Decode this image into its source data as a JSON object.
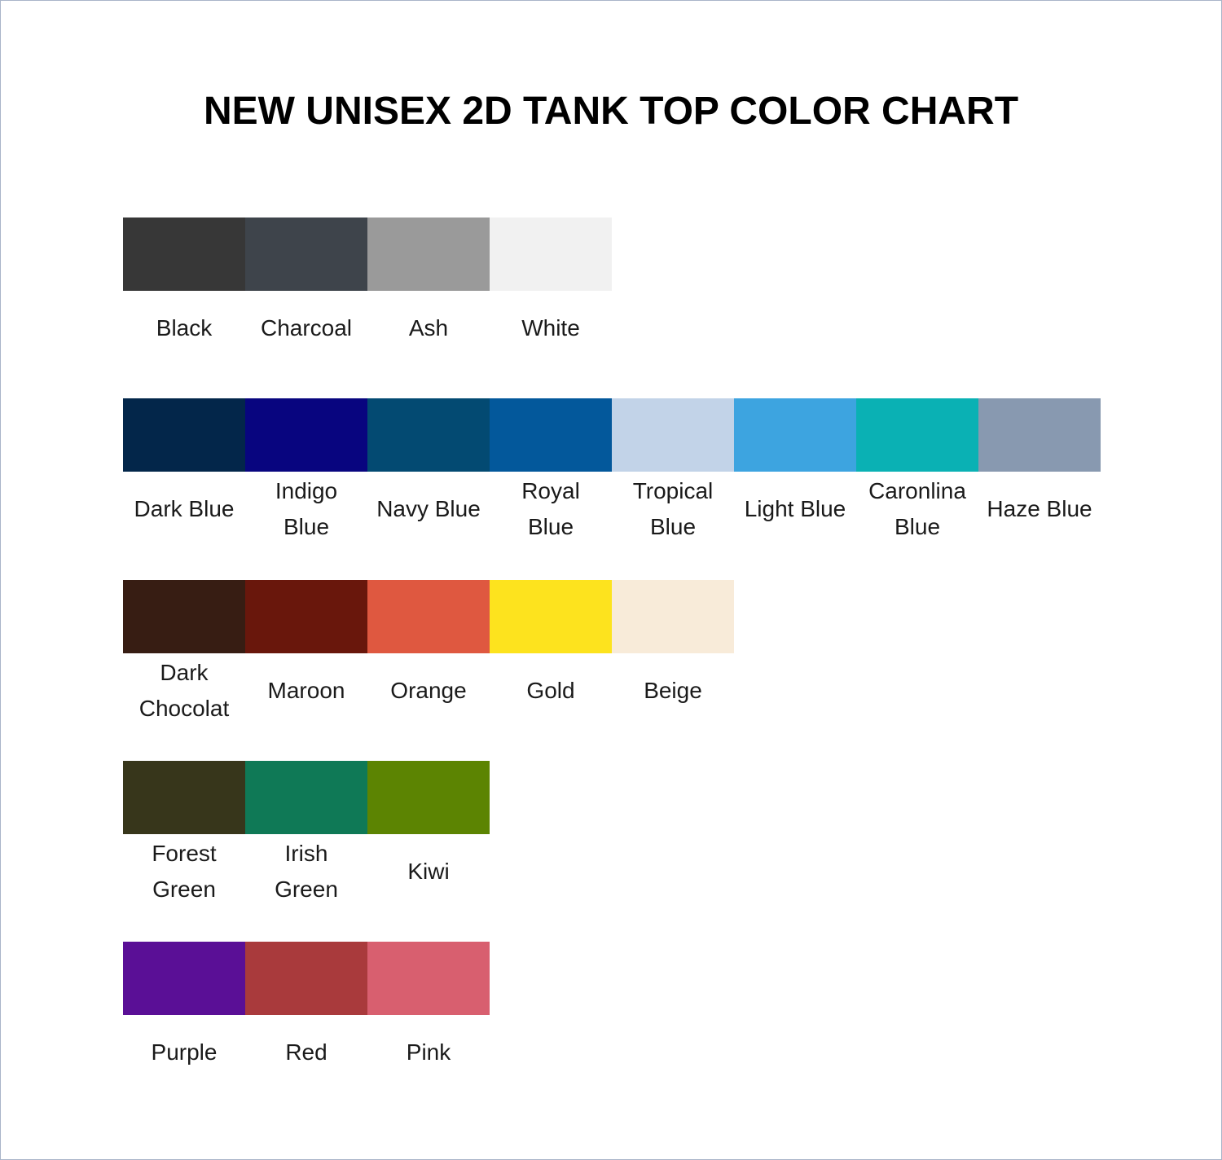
{
  "title": "NEW UNISEX 2D TANK TOP COLOR CHART",
  "rows": [
    [
      {
        "name": "Black",
        "color": "#373737"
      },
      {
        "name": "Charcoal",
        "color": "#3e444b"
      },
      {
        "name": "Ash",
        "color": "#9a9a9a"
      },
      {
        "name": "White",
        "color": "#f1f1f1"
      }
    ],
    [
      {
        "name": "Dark Blue",
        "color": "#03264a"
      },
      {
        "name": "Indigo\nBlue",
        "color": "#08057f"
      },
      {
        "name": "Navy Blue",
        "color": "#034a72"
      },
      {
        "name": "Royal\nBlue",
        "color": "#03589b"
      },
      {
        "name": "Tropical\nBlue",
        "color": "#c2d3e8"
      },
      {
        "name": "Light Blue",
        "color": "#3da4e0"
      },
      {
        "name": "Caronlina\nBlue",
        "color": "#0ab1b4"
      },
      {
        "name": "Haze Blue",
        "color": "#8899b0"
      }
    ],
    [
      {
        "name": "Dark\nChocolat",
        "color": "#371d13"
      },
      {
        "name": "Maroon",
        "color": "#69170c"
      },
      {
        "name": "Orange",
        "color": "#df5840"
      },
      {
        "name": "Gold",
        "color": "#fde31e"
      },
      {
        "name": "Beige",
        "color": "#f8ebd9"
      }
    ],
    [
      {
        "name": "Forest\nGreen",
        "color": "#37361b"
      },
      {
        "name": "Irish\nGreen",
        "color": "#0f7956"
      },
      {
        "name": "Kiwi",
        "color": "#5c8402"
      }
    ],
    [
      {
        "name": "Purple",
        "color": "#5a0f96"
      },
      {
        "name": "Red",
        "color": "#a93a3c"
      },
      {
        "name": "Pink",
        "color": "#d85f6f"
      }
    ]
  ]
}
